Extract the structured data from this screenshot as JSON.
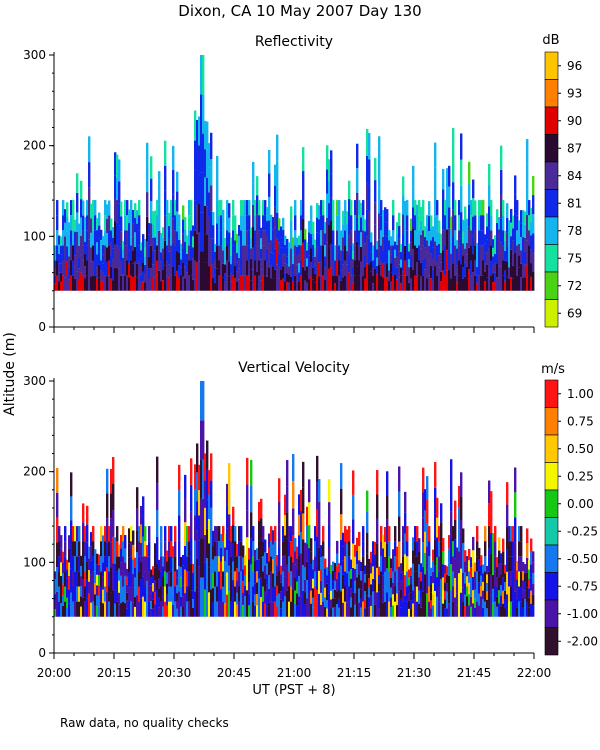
{
  "title": "Dixon, CA 10 May 2007  Day 130",
  "ylabel": "Altitude (m)",
  "xlabel": "UT  (PST + 8)",
  "footnote": "Raw data, no quality checks",
  "x_ticks": [
    "20:00",
    "20:15",
    "20:30",
    "20:45",
    "21:00",
    "21:15",
    "21:30",
    "21:45",
    "22:00"
  ],
  "chart_data": [
    {
      "type": "heatmap",
      "title": "Reflectivity",
      "colorbar_unit": "dB",
      "colorbar_ticks": [
        "96",
        "93",
        "90",
        "87",
        "84",
        "81",
        "78",
        "75",
        "72",
        "69"
      ],
      "colorbar_colors": [
        "#ffc400",
        "#ff7f00",
        "#e00000",
        "#2a0a30",
        "#4a2a98",
        "#1028e8",
        "#14b4ee",
        "#14e0a0",
        "#4ad214",
        "#cdf000"
      ],
      "x_range": [
        "20:00",
        "22:00"
      ],
      "ylim": [
        0,
        300
      ],
      "y_ticks": [
        "0",
        "100",
        "200",
        "300"
      ],
      "data_min_altitude": 40,
      "max_echo_top": 300,
      "max_echo_top_time": "20:37",
      "grid": false
    },
    {
      "type": "heatmap",
      "title": "Vertical Velocity",
      "colorbar_unit": "m/s",
      "colorbar_ticks": [
        "1.00",
        "0.75",
        "0.50",
        "0.25",
        "0.00",
        "-0.25",
        "-0.50",
        "-0.75",
        "-1.00",
        "-2.00"
      ],
      "colorbar_colors": [
        "#ff1414",
        "#ff8000",
        "#ffc800",
        "#f5f500",
        "#14c814",
        "#14c8aa",
        "#1478ee",
        "#1414e6",
        "#4a14a8",
        "#30102a"
      ],
      "x_range": [
        "20:00",
        "22:00"
      ],
      "ylim": [
        0,
        300
      ],
      "y_ticks": [
        "0",
        "100",
        "200",
        "300"
      ],
      "data_min_altitude": 40,
      "max_echo_top": 300,
      "max_echo_top_time": "20:37",
      "grid": false
    }
  ]
}
